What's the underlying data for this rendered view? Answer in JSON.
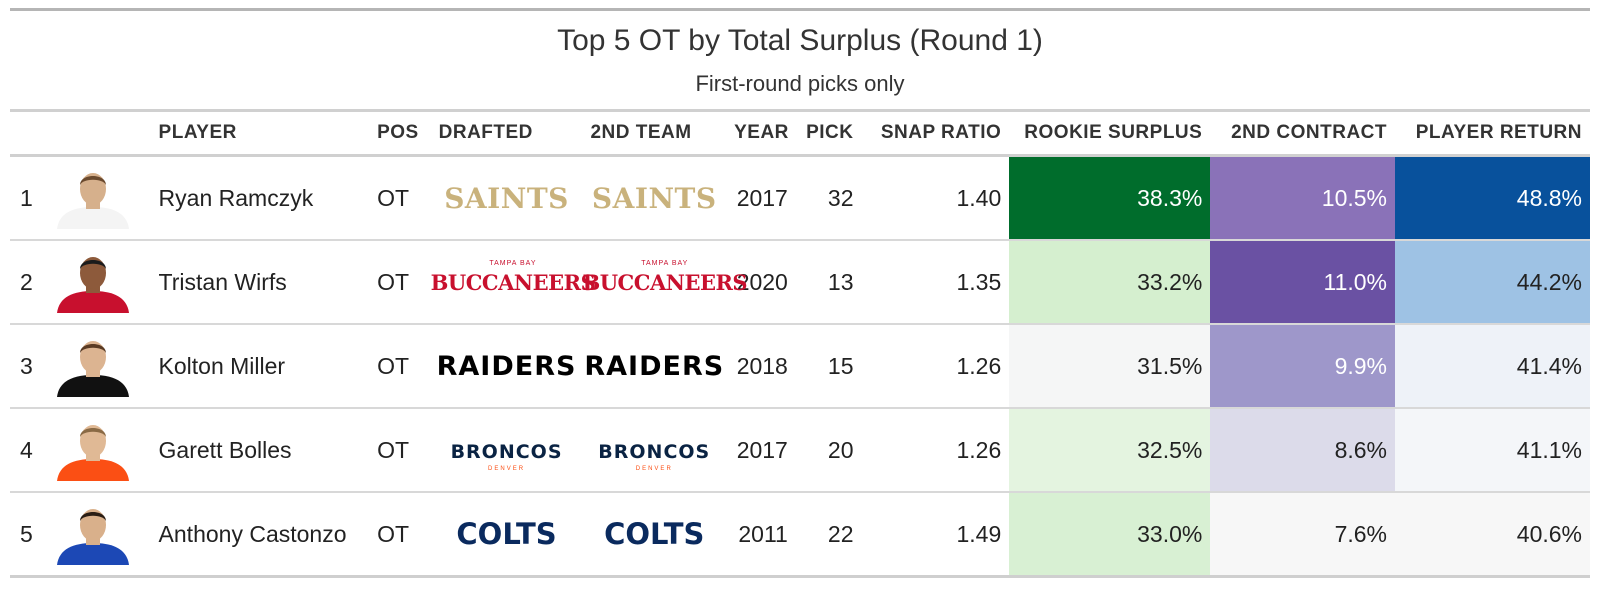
{
  "chart_data": {
    "type": "table",
    "title": "Top 5 OT by Total Surplus (Round 1)",
    "subtitle": "First-round picks only",
    "columns": [
      "",
      "",
      "PLAYER",
      "POS",
      "DRAFTED",
      "2ND TEAM",
      "YEAR",
      "PICK",
      "SNAP RATIO",
      "ROOKIE SURPLUS",
      "2ND CONTRACT",
      "PLAYER RETURN"
    ],
    "rows": [
      {
        "rank": "1",
        "headshot": "player-headshot",
        "jersey": "#f4f4f4",
        "skin": "#d6b08c",
        "hair": "#6b4a2e",
        "player": "Ryan Ramczyk",
        "pos": "OT",
        "drafted": {
          "text": "SAINTS",
          "color": "#c9b27c",
          "style": "saints"
        },
        "second_team": {
          "text": "SAINTS",
          "color": "#c9b27c",
          "style": "saints"
        },
        "year": "2017",
        "pick": "32",
        "snap_ratio": "1.40",
        "rookie_surplus": {
          "text": "38.3%",
          "value": 38.3,
          "bg": "#006d2c",
          "fg": "#ffffff"
        },
        "second_contract": {
          "text": "10.5%",
          "value": 10.5,
          "bg": "#8a72b8",
          "fg": "#ffffff"
        },
        "player_return": {
          "text": "48.8%",
          "value": 48.8,
          "bg": "#08519c",
          "fg": "#ffffff"
        }
      },
      {
        "rank": "2",
        "headshot": "player-headshot",
        "jersey": "#c8102e",
        "skin": "#8d5a3b",
        "hair": "#1c1c1c",
        "player": "Tristan Wirfs",
        "pos": "OT",
        "drafted": {
          "text": "BUCCANEERS",
          "color": "#c8102e",
          "style": "bucs",
          "sub": "TAMPA BAY"
        },
        "second_team": {
          "text": "BUCCANEERS",
          "color": "#c8102e",
          "style": "bucs",
          "sub": "TAMPA BAY"
        },
        "year": "2020",
        "pick": "13",
        "snap_ratio": "1.35",
        "rookie_surplus": {
          "text": "33.2%",
          "value": 33.2,
          "bg": "#d5efcf",
          "fg": "#222222"
        },
        "second_contract": {
          "text": "11.0%",
          "value": 11.0,
          "bg": "#6a51a3",
          "fg": "#ffffff"
        },
        "player_return": {
          "text": "44.2%",
          "value": 44.2,
          "bg": "#9ec2e4",
          "fg": "#222222"
        }
      },
      {
        "rank": "3",
        "headshot": "player-headshot",
        "jersey": "#111111",
        "skin": "#dcb491",
        "hair": "#5a3b24",
        "player": "Kolton Miller",
        "pos": "OT",
        "drafted": {
          "text": "RAIDERS",
          "color": "#000000",
          "style": "raiders"
        },
        "second_team": {
          "text": "RAIDERS",
          "color": "#000000",
          "style": "raiders"
        },
        "year": "2018",
        "pick": "15",
        "snap_ratio": "1.26",
        "rookie_surplus": {
          "text": "31.5%",
          "value": 31.5,
          "bg": "#f5f6f6",
          "fg": "#222222"
        },
        "second_contract": {
          "text": "9.9%",
          "value": 9.9,
          "bg": "#9e97ca",
          "fg": "#ffffff"
        },
        "player_return": {
          "text": "41.4%",
          "value": 41.4,
          "bg": "#eef2f8",
          "fg": "#222222"
        }
      },
      {
        "rank": "4",
        "headshot": "player-headshot",
        "jersey": "#fb4f14",
        "skin": "#e0b995",
        "hair": "#8a6a45",
        "player": "Garett Bolles",
        "pos": "OT",
        "drafted": {
          "text": "BRONCOS",
          "color": "#0a2343",
          "style": "broncos",
          "sub": "DENVER"
        },
        "second_team": {
          "text": "BRONCOS",
          "color": "#0a2343",
          "style": "broncos",
          "sub": "DENVER"
        },
        "year": "2017",
        "pick": "20",
        "snap_ratio": "1.26",
        "rookie_surplus": {
          "text": "32.5%",
          "value": 32.5,
          "bg": "#e4f4e0",
          "fg": "#222222"
        },
        "second_contract": {
          "text": "8.6%",
          "value": 8.6,
          "bg": "#dcdbea",
          "fg": "#222222"
        },
        "player_return": {
          "text": "41.1%",
          "value": 41.1,
          "bg": "#f4f6f9",
          "fg": "#222222"
        }
      },
      {
        "rank": "5",
        "headshot": "player-headshot",
        "jersey": "#1c48b5",
        "skin": "#d9b08b",
        "hair": "#2a1d14",
        "player": "Anthony Castonzo",
        "pos": "OT",
        "drafted": {
          "text": "COLTS",
          "color": "#0a2a5e",
          "style": "colts"
        },
        "second_team": {
          "text": "COLTS",
          "color": "#0a2a5e",
          "style": "colts"
        },
        "year": "2011",
        "pick": "22",
        "snap_ratio": "1.49",
        "rookie_surplus": {
          "text": "33.0%",
          "value": 33.0,
          "bg": "#d8f0d3",
          "fg": "#222222"
        },
        "second_contract": {
          "text": "7.6%",
          "value": 7.6,
          "bg": "#f7f7f7",
          "fg": "#222222"
        },
        "player_return": {
          "text": "40.6%",
          "value": 40.6,
          "bg": "#f7f7f7",
          "fg": "#222222"
        }
      }
    ]
  }
}
